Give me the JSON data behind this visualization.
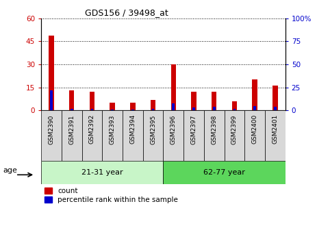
{
  "title": "GDS156 / 39498_at",
  "samples": [
    "GSM2390",
    "GSM2391",
    "GSM2392",
    "GSM2393",
    "GSM2394",
    "GSM2395",
    "GSM2396",
    "GSM2397",
    "GSM2398",
    "GSM2399",
    "GSM2400",
    "GSM2401"
  ],
  "count": [
    49,
    13,
    12,
    5,
    5,
    7,
    30,
    12,
    12,
    6,
    20,
    16
  ],
  "percentile": [
    22,
    2,
    2,
    1,
    1,
    2,
    8,
    3,
    4,
    2,
    5,
    4
  ],
  "groups": [
    {
      "label": "21-31 year",
      "start": 0,
      "end": 6
    },
    {
      "label": "62-77 year",
      "start": 6,
      "end": 12
    }
  ],
  "group_colors": [
    "#c8f5c8",
    "#5cd65c"
  ],
  "ylim_left": [
    0,
    60
  ],
  "ylim_right": [
    0,
    100
  ],
  "yticks_left": [
    0,
    15,
    30,
    45,
    60
  ],
  "yticks_right": [
    0,
    25,
    50,
    75,
    100
  ],
  "ytick_labels_left": [
    "0",
    "15",
    "30",
    "45",
    "60"
  ],
  "ytick_labels_right": [
    "0",
    "25",
    "50",
    "75",
    "100%"
  ],
  "left_tick_color": "#CC0000",
  "right_tick_color": "#0000CC",
  "bar_color_count": "#CC0000",
  "bar_color_pct": "#0000CC",
  "bg_color": "#ffffff",
  "xtick_bg": "#d8d8d8",
  "age_label": "age",
  "legend_count": "count",
  "legend_pct": "percentile rank within the sample"
}
